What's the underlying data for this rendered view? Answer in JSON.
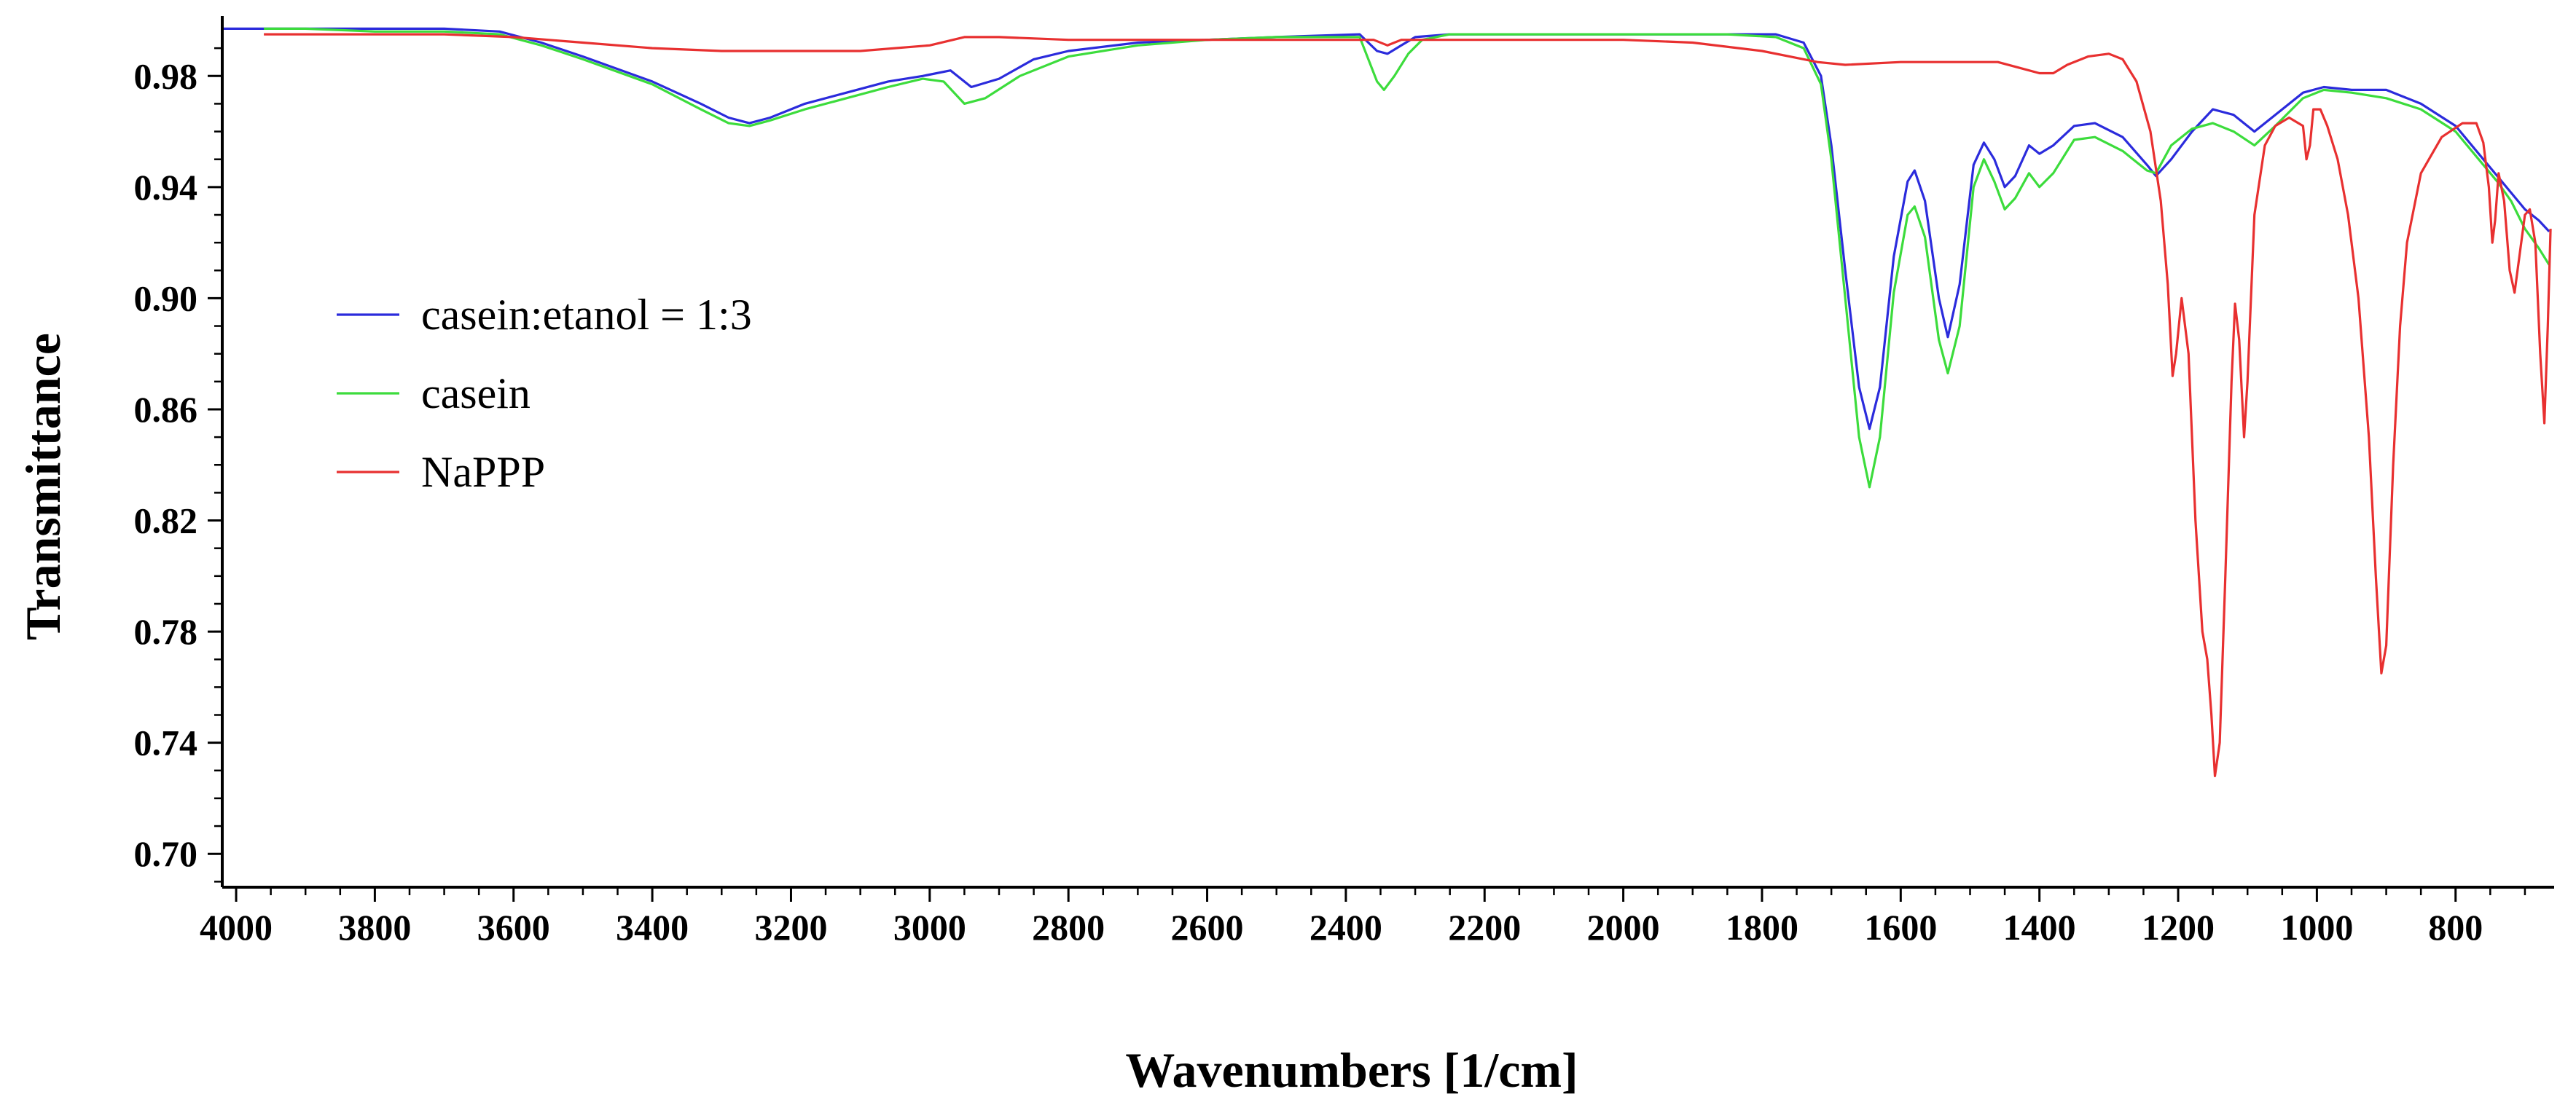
{
  "chart_data": {
    "type": "line",
    "title": "",
    "xlabel": "Wavenumbers [1/cm]",
    "ylabel": "Transmittance",
    "xlim": [
      4020,
      660
    ],
    "ylim": [
      0.688,
      1.0
    ],
    "x_reversed": true,
    "grid": false,
    "legend_position": "left-middle",
    "x_ticks": [
      "4000",
      "3800",
      "3600",
      "3400",
      "3200",
      "3000",
      "2800",
      "2600",
      "2400",
      "2200",
      "2000",
      "1800",
      "1600",
      "1400",
      "1200",
      "1000",
      "800"
    ],
    "y_ticks": [
      "0.98",
      "0.94",
      "0.90",
      "0.86",
      "0.82",
      "0.78",
      "0.74",
      "0.70"
    ],
    "series": [
      {
        "name": "casein:etanol = 1:3",
        "color": "#2b2bdc",
        "points": [
          [
            4020,
            0.997
          ],
          [
            3970,
            0.997
          ],
          [
            3900,
            0.997
          ],
          [
            3800,
            0.997
          ],
          [
            3700,
            0.997
          ],
          [
            3620,
            0.996
          ],
          [
            3560,
            0.992
          ],
          [
            3500,
            0.987
          ],
          [
            3400,
            0.978
          ],
          [
            3330,
            0.97
          ],
          [
            3290,
            0.965
          ],
          [
            3260,
            0.963
          ],
          [
            3230,
            0.965
          ],
          [
            3180,
            0.97
          ],
          [
            3120,
            0.974
          ],
          [
            3060,
            0.978
          ],
          [
            3010,
            0.98
          ],
          [
            2970,
            0.982
          ],
          [
            2940,
            0.976
          ],
          [
            2900,
            0.979
          ],
          [
            2850,
            0.986
          ],
          [
            2800,
            0.989
          ],
          [
            2700,
            0.992
          ],
          [
            2600,
            0.993
          ],
          [
            2500,
            0.994
          ],
          [
            2380,
            0.995
          ],
          [
            2355,
            0.989
          ],
          [
            2340,
            0.988
          ],
          [
            2320,
            0.991
          ],
          [
            2300,
            0.994
          ],
          [
            2250,
            0.995
          ],
          [
            2100,
            0.995
          ],
          [
            2000,
            0.995
          ],
          [
            1850,
            0.995
          ],
          [
            1780,
            0.995
          ],
          [
            1740,
            0.992
          ],
          [
            1715,
            0.98
          ],
          [
            1700,
            0.955
          ],
          [
            1680,
            0.91
          ],
          [
            1660,
            0.868
          ],
          [
            1645,
            0.853
          ],
          [
            1630,
            0.868
          ],
          [
            1610,
            0.915
          ],
          [
            1590,
            0.942
          ],
          [
            1580,
            0.946
          ],
          [
            1565,
            0.935
          ],
          [
            1545,
            0.9
          ],
          [
            1532,
            0.886
          ],
          [
            1515,
            0.905
          ],
          [
            1495,
            0.948
          ],
          [
            1480,
            0.956
          ],
          [
            1465,
            0.95
          ],
          [
            1450,
            0.94
          ],
          [
            1435,
            0.944
          ],
          [
            1415,
            0.955
          ],
          [
            1400,
            0.952
          ],
          [
            1380,
            0.955
          ],
          [
            1350,
            0.962
          ],
          [
            1320,
            0.963
          ],
          [
            1280,
            0.958
          ],
          [
            1245,
            0.948
          ],
          [
            1232,
            0.944
          ],
          [
            1210,
            0.95
          ],
          [
            1180,
            0.96
          ],
          [
            1150,
            0.968
          ],
          [
            1120,
            0.966
          ],
          [
            1090,
            0.96
          ],
          [
            1060,
            0.966
          ],
          [
            1020,
            0.974
          ],
          [
            990,
            0.976
          ],
          [
            950,
            0.975
          ],
          [
            900,
            0.975
          ],
          [
            850,
            0.97
          ],
          [
            800,
            0.962
          ],
          [
            760,
            0.95
          ],
          [
            740,
            0.944
          ],
          [
            720,
            0.938
          ],
          [
            700,
            0.932
          ],
          [
            680,
            0.928
          ],
          [
            665,
            0.924
          ]
        ]
      },
      {
        "name": "casein",
        "color": "#3cdc3c",
        "points": [
          [
            3960,
            0.997
          ],
          [
            3900,
            0.997
          ],
          [
            3800,
            0.996
          ],
          [
            3700,
            0.996
          ],
          [
            3620,
            0.995
          ],
          [
            3560,
            0.991
          ],
          [
            3500,
            0.986
          ],
          [
            3400,
            0.977
          ],
          [
            3330,
            0.968
          ],
          [
            3290,
            0.963
          ],
          [
            3260,
            0.962
          ],
          [
            3230,
            0.964
          ],
          [
            3180,
            0.968
          ],
          [
            3120,
            0.972
          ],
          [
            3060,
            0.976
          ],
          [
            3010,
            0.979
          ],
          [
            2980,
            0.978
          ],
          [
            2950,
            0.97
          ],
          [
            2920,
            0.972
          ],
          [
            2870,
            0.98
          ],
          [
            2800,
            0.987
          ],
          [
            2700,
            0.991
          ],
          [
            2600,
            0.993
          ],
          [
            2500,
            0.994
          ],
          [
            2380,
            0.994
          ],
          [
            2355,
            0.978
          ],
          [
            2345,
            0.975
          ],
          [
            2330,
            0.98
          ],
          [
            2310,
            0.988
          ],
          [
            2290,
            0.993
          ],
          [
            2250,
            0.995
          ],
          [
            2100,
            0.995
          ],
          [
            2000,
            0.995
          ],
          [
            1850,
            0.995
          ],
          [
            1780,
            0.994
          ],
          [
            1740,
            0.99
          ],
          [
            1715,
            0.977
          ],
          [
            1700,
            0.95
          ],
          [
            1680,
            0.9
          ],
          [
            1660,
            0.85
          ],
          [
            1645,
            0.832
          ],
          [
            1630,
            0.85
          ],
          [
            1610,
            0.902
          ],
          [
            1590,
            0.93
          ],
          [
            1580,
            0.933
          ],
          [
            1565,
            0.922
          ],
          [
            1545,
            0.885
          ],
          [
            1532,
            0.873
          ],
          [
            1515,
            0.89
          ],
          [
            1495,
            0.94
          ],
          [
            1480,
            0.95
          ],
          [
            1465,
            0.942
          ],
          [
            1450,
            0.932
          ],
          [
            1435,
            0.936
          ],
          [
            1415,
            0.945
          ],
          [
            1400,
            0.94
          ],
          [
            1380,
            0.945
          ],
          [
            1350,
            0.957
          ],
          [
            1320,
            0.958
          ],
          [
            1280,
            0.953
          ],
          [
            1245,
            0.946
          ],
          [
            1232,
            0.945
          ],
          [
            1210,
            0.955
          ],
          [
            1180,
            0.961
          ],
          [
            1150,
            0.963
          ],
          [
            1120,
            0.96
          ],
          [
            1090,
            0.955
          ],
          [
            1060,
            0.962
          ],
          [
            1020,
            0.972
          ],
          [
            990,
            0.975
          ],
          [
            950,
            0.974
          ],
          [
            900,
            0.972
          ],
          [
            850,
            0.968
          ],
          [
            800,
            0.96
          ],
          [
            760,
            0.948
          ],
          [
            740,
            0.942
          ],
          [
            720,
            0.935
          ],
          [
            700,
            0.925
          ],
          [
            680,
            0.918
          ],
          [
            665,
            0.912
          ]
        ]
      },
      {
        "name": "NaPPP",
        "color": "#e83030",
        "points": [
          [
            3960,
            0.995
          ],
          [
            3800,
            0.995
          ],
          [
            3700,
            0.995
          ],
          [
            3600,
            0.994
          ],
          [
            3500,
            0.992
          ],
          [
            3400,
            0.99
          ],
          [
            3300,
            0.989
          ],
          [
            3200,
            0.989
          ],
          [
            3100,
            0.989
          ],
          [
            3000,
            0.991
          ],
          [
            2950,
            0.994
          ],
          [
            2900,
            0.994
          ],
          [
            2800,
            0.993
          ],
          [
            2700,
            0.993
          ],
          [
            2600,
            0.993
          ],
          [
            2500,
            0.993
          ],
          [
            2400,
            0.993
          ],
          [
            2360,
            0.993
          ],
          [
            2340,
            0.991
          ],
          [
            2320,
            0.993
          ],
          [
            2300,
            0.993
          ],
          [
            2200,
            0.993
          ],
          [
            2100,
            0.993
          ],
          [
            2000,
            0.993
          ],
          [
            1900,
            0.992
          ],
          [
            1800,
            0.989
          ],
          [
            1760,
            0.987
          ],
          [
            1720,
            0.985
          ],
          [
            1680,
            0.984
          ],
          [
            1600,
            0.985
          ],
          [
            1500,
            0.985
          ],
          [
            1460,
            0.985
          ],
          [
            1430,
            0.983
          ],
          [
            1400,
            0.981
          ],
          [
            1380,
            0.981
          ],
          [
            1360,
            0.984
          ],
          [
            1330,
            0.987
          ],
          [
            1300,
            0.988
          ],
          [
            1280,
            0.986
          ],
          [
            1260,
            0.978
          ],
          [
            1240,
            0.96
          ],
          [
            1225,
            0.935
          ],
          [
            1215,
            0.905
          ],
          [
            1208,
            0.872
          ],
          [
            1203,
            0.88
          ],
          [
            1195,
            0.9
          ],
          [
            1185,
            0.88
          ],
          [
            1175,
            0.82
          ],
          [
            1165,
            0.78
          ],
          [
            1158,
            0.77
          ],
          [
            1152,
            0.75
          ],
          [
            1147,
            0.728
          ],
          [
            1140,
            0.74
          ],
          [
            1132,
            0.8
          ],
          [
            1123,
            0.87
          ],
          [
            1118,
            0.898
          ],
          [
            1112,
            0.885
          ],
          [
            1105,
            0.85
          ],
          [
            1100,
            0.87
          ],
          [
            1090,
            0.93
          ],
          [
            1075,
            0.955
          ],
          [
            1060,
            0.962
          ],
          [
            1040,
            0.965
          ],
          [
            1020,
            0.962
          ],
          [
            1015,
            0.95
          ],
          [
            1010,
            0.955
          ],
          [
            1005,
            0.968
          ],
          [
            995,
            0.968
          ],
          [
            985,
            0.962
          ],
          [
            970,
            0.95
          ],
          [
            955,
            0.93
          ],
          [
            940,
            0.9
          ],
          [
            925,
            0.85
          ],
          [
            915,
            0.8
          ],
          [
            907,
            0.765
          ],
          [
            900,
            0.775
          ],
          [
            890,
            0.84
          ],
          [
            880,
            0.89
          ],
          [
            870,
            0.92
          ],
          [
            850,
            0.945
          ],
          [
            820,
            0.958
          ],
          [
            790,
            0.963
          ],
          [
            770,
            0.963
          ],
          [
            760,
            0.956
          ],
          [
            752,
            0.94
          ],
          [
            747,
            0.92
          ],
          [
            743,
            0.928
          ],
          [
            738,
            0.945
          ],
          [
            730,
            0.935
          ],
          [
            722,
            0.91
          ],
          [
            715,
            0.902
          ],
          [
            708,
            0.915
          ],
          [
            700,
            0.93
          ],
          [
            693,
            0.932
          ],
          [
            685,
            0.92
          ],
          [
            678,
            0.88
          ],
          [
            672,
            0.855
          ],
          [
            667,
            0.89
          ],
          [
            663,
            0.925
          ]
        ]
      }
    ]
  }
}
